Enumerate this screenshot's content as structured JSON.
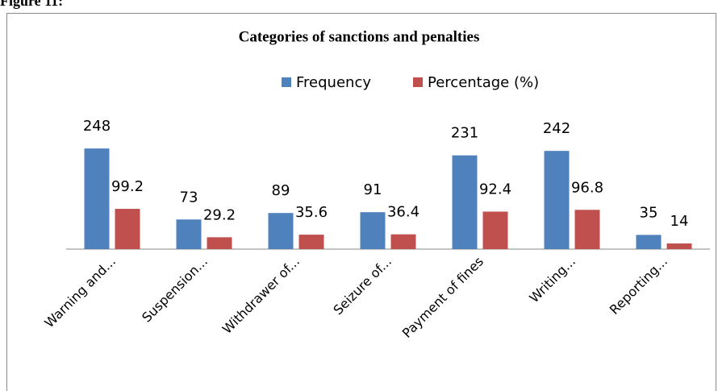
{
  "figure_label": "Figure 11:",
  "chart_data": {
    "type": "bar",
    "title": "Categories of sanctions and penalties",
    "categories": [
      "Warning and...",
      "Suspension...",
      "Withdrawer of...",
      "Seizure of...",
      "Payment of fines",
      "Writing...",
      "Reporting..."
    ],
    "series": [
      {
        "name": "Frequency",
        "color": "#4f81bd",
        "values": [
          248,
          73,
          89,
          91,
          231,
          242,
          35
        ]
      },
      {
        "name": "Percentage (%)",
        "color": "#c0504d",
        "values": [
          99.2,
          29.2,
          35.6,
          36.4,
          92.4,
          96.8,
          14
        ]
      }
    ],
    "ylim": [
      0,
      300
    ],
    "legend": "top"
  }
}
